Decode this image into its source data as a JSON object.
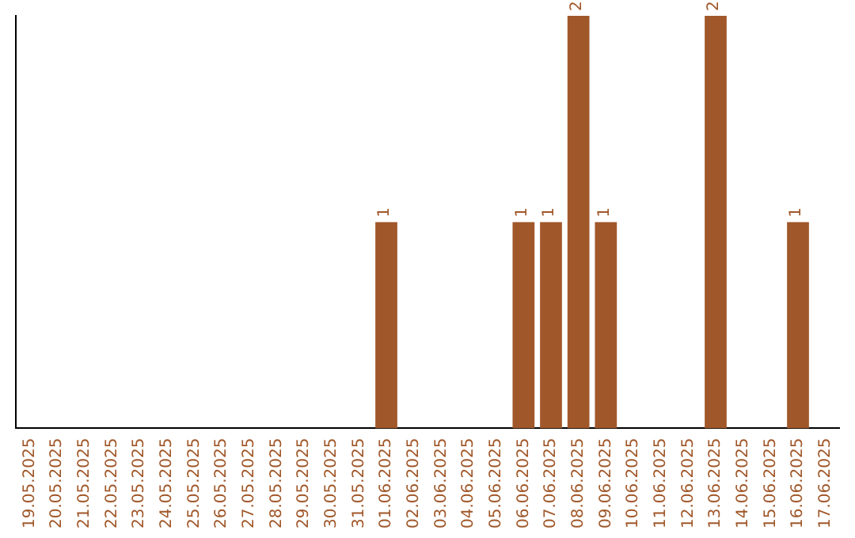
{
  "chart_data": {
    "type": "bar",
    "categories": [
      "19.05.2025",
      "20.05.2025",
      "21.05.2025",
      "22.05.2025",
      "23.05.2025",
      "24.05.2025",
      "25.05.2025",
      "26.05.2025",
      "27.05.2025",
      "28.05.2025",
      "29.05.2025",
      "30.05.2025",
      "31.05.2025",
      "01.06.2025",
      "02.06.2025",
      "03.06.2025",
      "04.06.2025",
      "05.06.2025",
      "06.06.2025",
      "07.06.2025",
      "08.06.2025",
      "09.06.2025",
      "10.06.2025",
      "11.06.2025",
      "12.06.2025",
      "13.06.2025",
      "14.06.2025",
      "15.06.2025",
      "16.06.2025",
      "17.06.2025"
    ],
    "values": [
      null,
      null,
      null,
      null,
      null,
      null,
      null,
      null,
      null,
      null,
      null,
      null,
      null,
      1,
      null,
      null,
      null,
      null,
      1,
      1,
      2,
      1,
      null,
      null,
      null,
      2,
      null,
      null,
      1,
      null
    ],
    "data_labels": true,
    "color": "#a0582a",
    "grid": false,
    "legend": false,
    "tick_labels": "x"
  }
}
